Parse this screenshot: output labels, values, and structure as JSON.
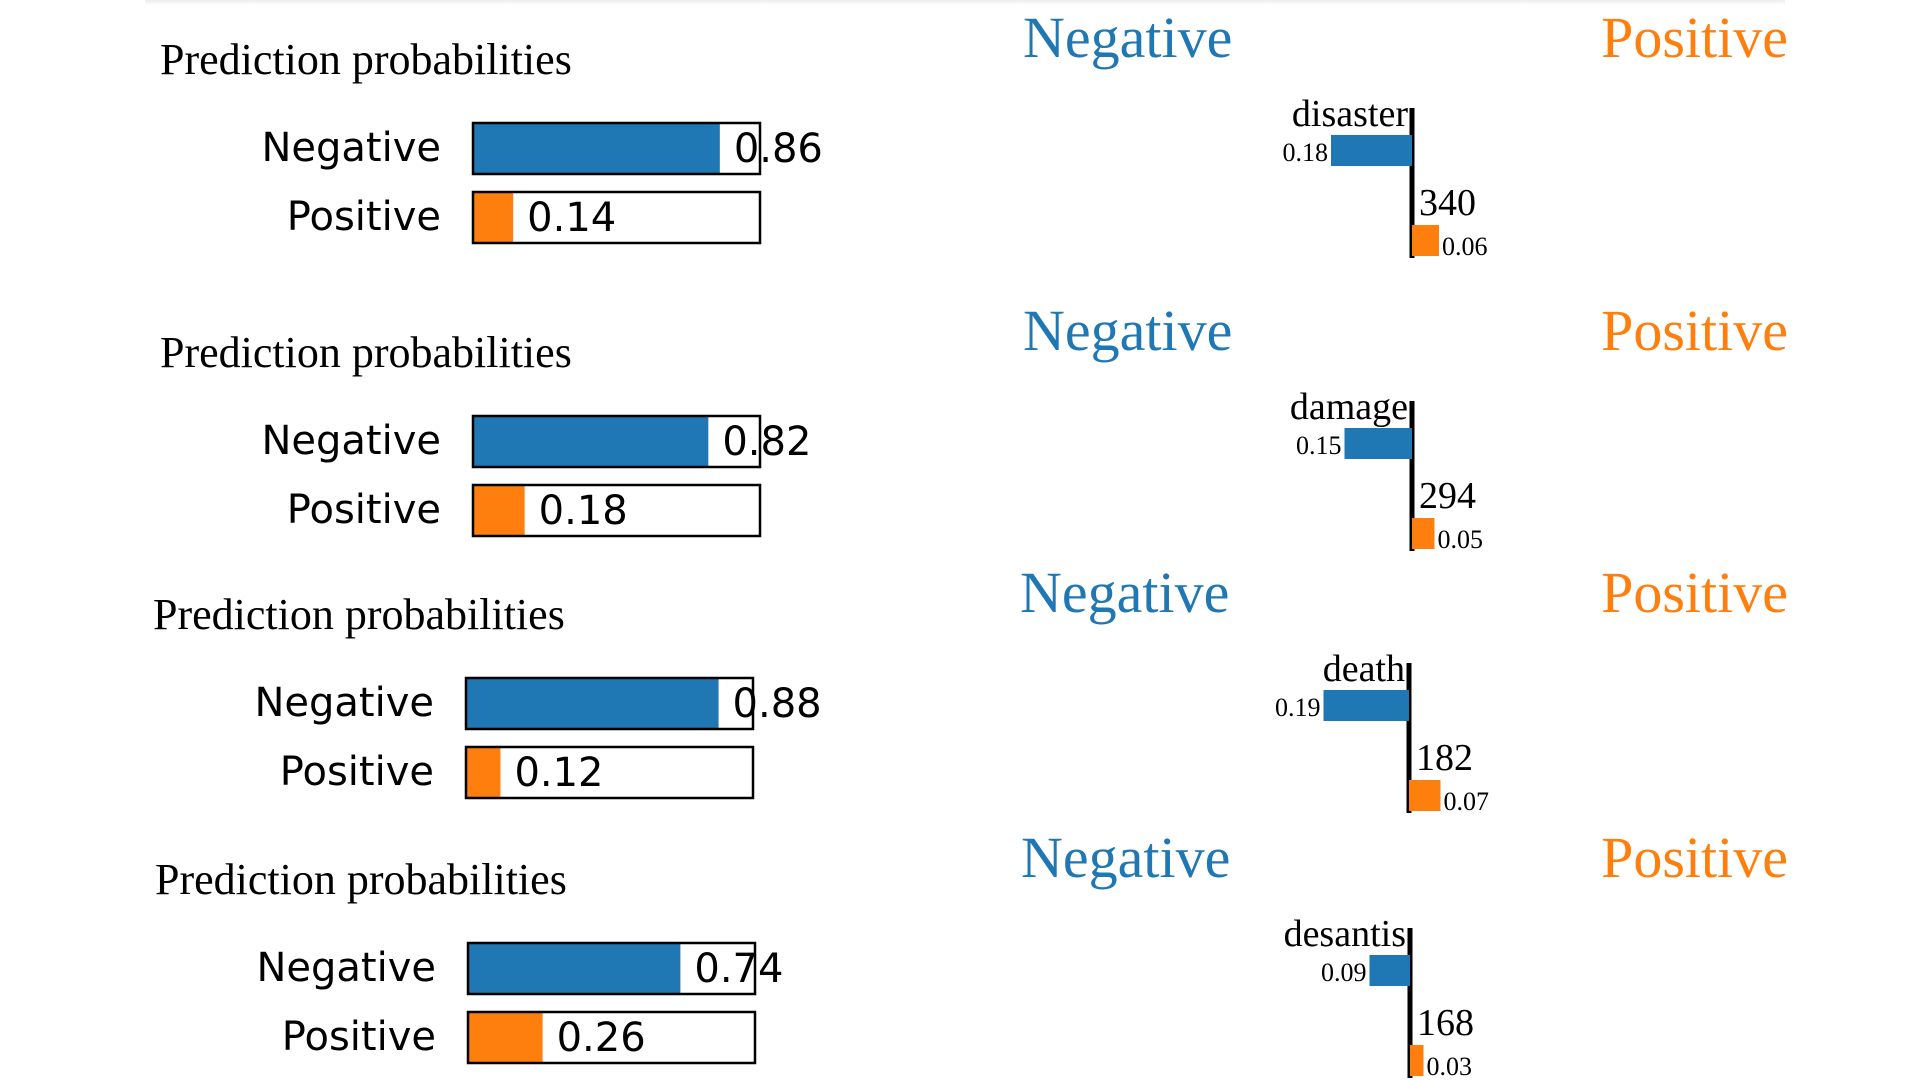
{
  "colors": {
    "negative": "#1f77b4",
    "positive": "#ff7f0e",
    "text": "#000000"
  },
  "chart_data": [
    {
      "type": "bar",
      "panel": "prediction_probabilities",
      "title": "Prediction probabilities",
      "categories": [
        "Negative",
        "Positive"
      ],
      "values": [
        0.86,
        0.14
      ],
      "value_labels": [
        "0.86",
        "0.14"
      ],
      "xlim": [
        0,
        1
      ]
    },
    {
      "type": "bar",
      "panel": "feature_weights",
      "headers": [
        "Negative",
        "Positive"
      ],
      "features": [
        {
          "name": "disaster",
          "class": "Negative",
          "weight": 0.18,
          "weight_label": "0.18"
        },
        {
          "name": "340",
          "class": "Positive",
          "weight": 0.06,
          "weight_label": "0.06"
        }
      ]
    },
    {
      "type": "bar",
      "panel": "prediction_probabilities",
      "title": "Prediction probabilities",
      "categories": [
        "Negative",
        "Positive"
      ],
      "values": [
        0.82,
        0.18
      ],
      "value_labels": [
        "0.82",
        "0.18"
      ],
      "xlim": [
        0,
        1
      ]
    },
    {
      "type": "bar",
      "panel": "feature_weights",
      "headers": [
        "Negative",
        "Positive"
      ],
      "features": [
        {
          "name": "damage",
          "class": "Negative",
          "weight": 0.15,
          "weight_label": "0.15"
        },
        {
          "name": "294",
          "class": "Positive",
          "weight": 0.05,
          "weight_label": "0.05"
        }
      ]
    },
    {
      "type": "bar",
      "panel": "prediction_probabilities",
      "title": "Prediction probabilities",
      "categories": [
        "Negative",
        "Positive"
      ],
      "values": [
        0.88,
        0.12
      ],
      "value_labels": [
        "0.88",
        "0.12"
      ],
      "xlim": [
        0,
        1
      ]
    },
    {
      "type": "bar",
      "panel": "feature_weights",
      "headers": [
        "Negative",
        "Positive"
      ],
      "features": [
        {
          "name": "death",
          "class": "Negative",
          "weight": 0.19,
          "weight_label": "0.19"
        },
        {
          "name": "182",
          "class": "Positive",
          "weight": 0.07,
          "weight_label": "0.07"
        }
      ]
    },
    {
      "type": "bar",
      "panel": "prediction_probabilities",
      "title": "Prediction probabilities",
      "categories": [
        "Negative",
        "Positive"
      ],
      "values": [
        0.74,
        0.26
      ],
      "value_labels": [
        "0.74",
        "0.26"
      ],
      "xlim": [
        0,
        1
      ]
    },
    {
      "type": "bar",
      "panel": "feature_weights",
      "headers": [
        "Negative",
        "Positive"
      ],
      "features": [
        {
          "name": "desantis",
          "class": "Negative",
          "weight": 0.09,
          "weight_label": "0.09"
        },
        {
          "name": "168",
          "class": "Positive",
          "weight": 0.03,
          "weight_label": "0.03"
        }
      ]
    }
  ]
}
